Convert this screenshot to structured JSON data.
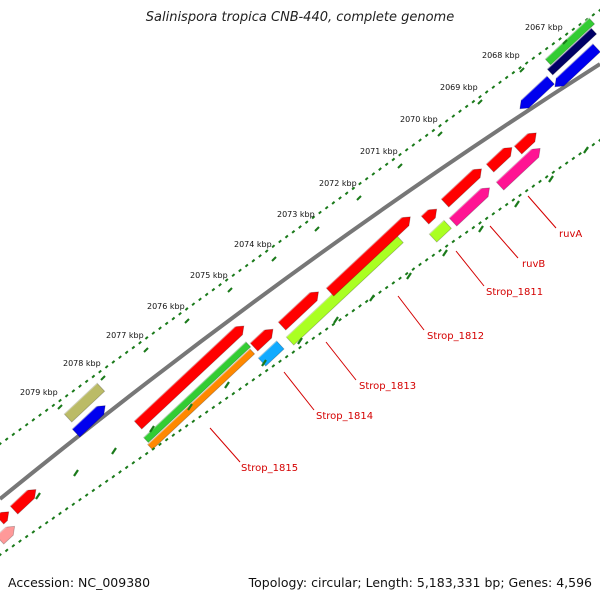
{
  "title": "Salinispora tropica CNB-440, complete genome",
  "footer": {
    "accession": "Accession: NC_009380",
    "summary": "Topology: circular; Length: 5,183,331 bp; Genes: 4,596"
  },
  "ticks": [
    {
      "label": "2067 kbp"
    },
    {
      "label": "2068 kbp"
    },
    {
      "label": "2069 kbp"
    },
    {
      "label": "2070 kbp"
    },
    {
      "label": "2071 kbp"
    },
    {
      "label": "2072 kbp"
    },
    {
      "label": "2073 kbp"
    },
    {
      "label": "2074 kbp"
    },
    {
      "label": "2075 kbp"
    },
    {
      "label": "2076 kbp"
    },
    {
      "label": "2077 kbp"
    },
    {
      "label": "2078 kbp"
    },
    {
      "label": "2079 kbp"
    }
  ],
  "gene_labels": [
    "ruvA",
    "ruvB",
    "Strop_1811",
    "Strop_1812",
    "Strop_1813",
    "Strop_1814",
    "Strop_1815"
  ],
  "colors": {
    "red": "#ff0000",
    "green": "#33cc33",
    "blue": "#0000ee",
    "navy": "#000066",
    "magenta": "#ff1493",
    "lime": "#aaff22",
    "cyan": "#11aaff",
    "orange": "#ff8800",
    "olive": "#bbbb66",
    "pink": "#ff9999",
    "backbone": "#777777",
    "tick": "#1a7a1a",
    "label_red": "#d40000"
  }
}
